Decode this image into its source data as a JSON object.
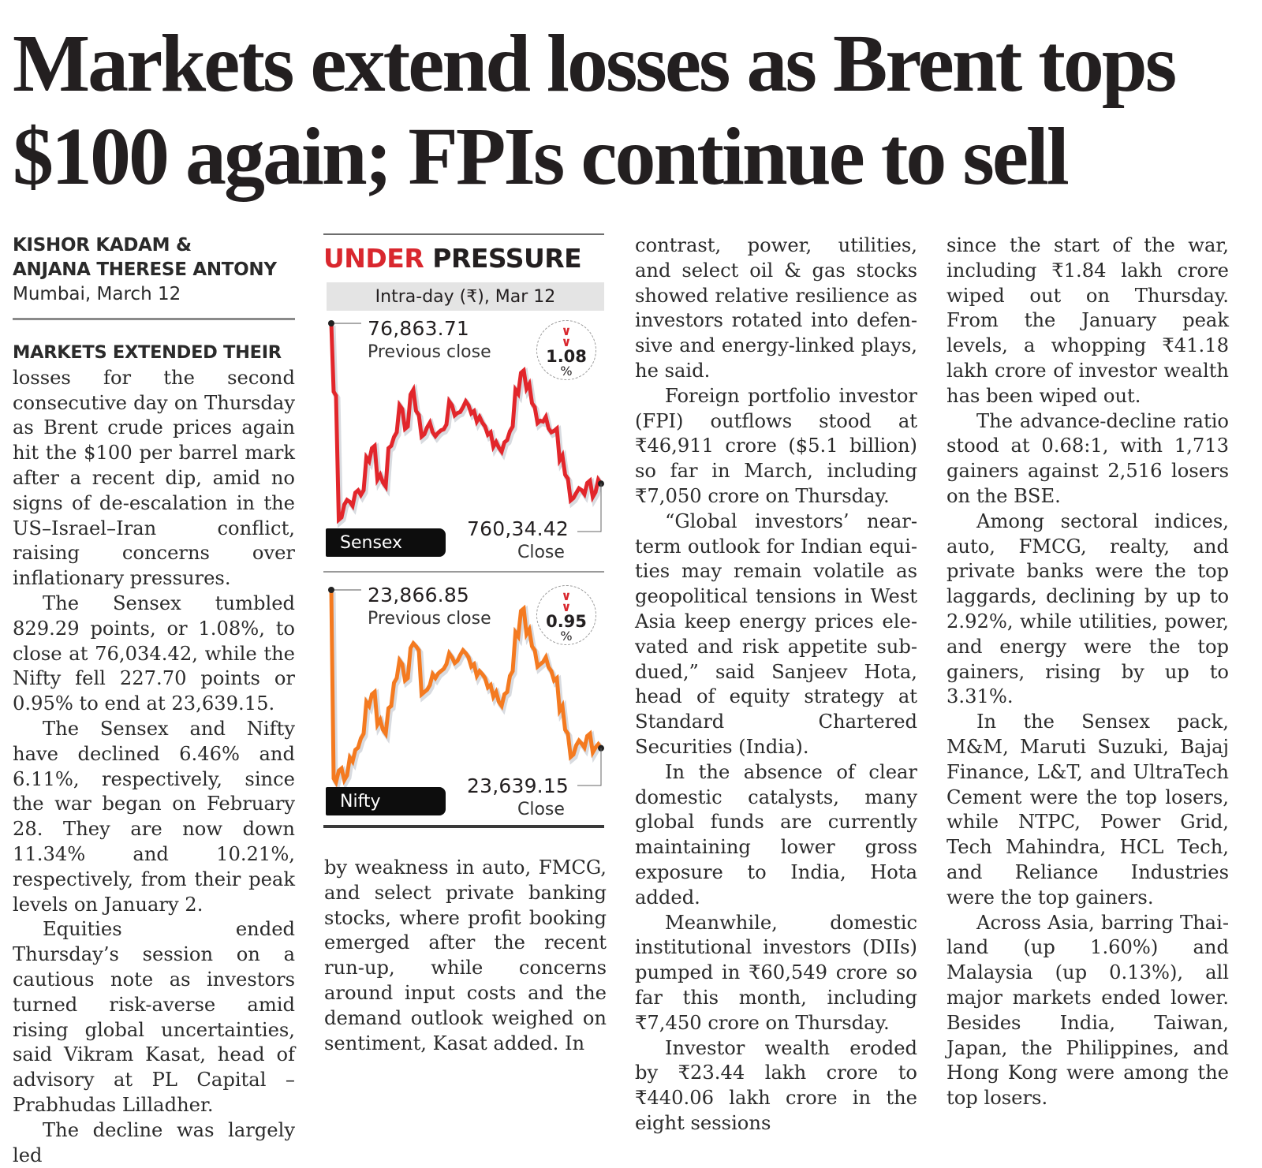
{
  "headline": {
    "line1": "Markets extend losses as Brent tops",
    "line2": "$100 again; FPIs continue to sell"
  },
  "byline": {
    "authors_line1": "KISHOR KADAM &",
    "authors_line2": "ANJANA THERESE ANTONY",
    "dateline": "Mumbai, March 12"
  },
  "graphic": {
    "title_red": "UNDER",
    "title_dark": "PRESSURE",
    "subtitle": "Intra-day (₹), Mar 12",
    "colors": {
      "red": "#d9272e",
      "sensex_line": "#e2262b",
      "nifty_line": "#f47a20",
      "dark": "#231f20"
    },
    "sensex": {
      "name": "Sensex",
      "previous_close_value": "76,863.71",
      "previous_close_label": "Previous close",
      "close_value": "760,34.42",
      "close_label": "Close",
      "change_pct": "1.08",
      "pct_symbol": "%",
      "arrow_icon": "double-chevron-down"
    },
    "nifty": {
      "name": "Nifty",
      "previous_close_value": "23,866.85",
      "previous_close_label": "Previous close",
      "close_value": "23,639.15",
      "close_label": "Close",
      "change_pct": "0.95",
      "pct_symbol": "%",
      "arrow_icon": "double-chevron-down"
    }
  },
  "chart_data": [
    {
      "type": "line",
      "title": "Sensex",
      "ylabel": "Intra-day (₹)",
      "annotations": [
        "76,863.71 Previous close",
        "760,34.42 Close",
        "1.08 %"
      ],
      "y_start": 76863.71,
      "y_end": 76034.42,
      "series": [
        {
          "name": "Sensex",
          "values": [
            76863.71,
            76490,
            75860,
            75950,
            75920,
            76000,
            76000,
            76150,
            76230,
            76080,
            76020,
            76230,
            76300,
            76420,
            76330,
            76520,
            76390,
            76290,
            76350,
            76280,
            76310,
            76340,
            76440,
            76400,
            76430,
            76440,
            76410,
            76380,
            76330,
            76300,
            76250,
            76200,
            76260,
            76330,
            76500,
            76620,
            76550,
            76430,
            76360,
            76380,
            76300,
            76320,
            76180,
            76060,
            75960,
            76010,
            75980,
            76050,
            75990,
            76034.42
          ]
        }
      ]
    },
    {
      "type": "line",
      "title": "Nifty",
      "ylabel": "Intra-day (₹)",
      "annotations": [
        "23,866.85 Previous close",
        "23,639.15 Close",
        "0.95 %"
      ],
      "y_start": 23866.85,
      "y_end": 23639.15,
      "series": [
        {
          "name": "Nifty",
          "values": [
            23866.85,
            23590,
            23610,
            23600,
            23620,
            23640,
            23660,
            23700,
            23720,
            23680,
            23660,
            23700,
            23740,
            23760,
            23740,
            23790,
            23780,
            23720,
            23730,
            23740,
            23750,
            23760,
            23770,
            23765,
            23780,
            23770,
            23760,
            23750,
            23740,
            23730,
            23720,
            23700,
            23720,
            23750,
            23800,
            23840,
            23810,
            23780,
            23760,
            23770,
            23750,
            23740,
            23700,
            23660,
            23630,
            23650,
            23640,
            23660,
            23640,
            23639.15
          ]
        }
      ]
    }
  ],
  "columns": {
    "col1": {
      "lede_caps": "MARKETS EXTENDED THEIR",
      "p1": "losses for the second consecu­tive day on Thursday as Brent crude prices again hit the $100 per barrel mark after a recent dip, amid no signs of de-esca­lation in the US–Israel–Iran conflict, raising concerns over inflationary pressures.",
      "p2": "The Sensex tumbled 829.29 points, or 1.08%, to close at 76,034.42, while the Nifty fell 227.70 points or 0.95% to end at 23,639.15.",
      "p3": "The Sensex and Nifty have declined 6.46% and 6.11%, respectively, since the war began on February 28. They are now down 11.34% and 10.21%, respectively, from their peak levels on January 2.",
      "p4": "Equities ended Thursday’s session on a cautious note as investors turned risk-averse amid rising global uncertain­ties, said Vikram Kasat, head of advisory at PL Capital – Prab­hudas Lilladher.",
      "p5": "The decline was largely led"
    },
    "col2": {
      "p1": "by weakness in auto, FMCG, and select private banking stocks, where profit booking emerged after the recent run-up, while concerns around input costs and the demand outlook weighed on sentiment, Kasat added. In"
    },
    "col3": {
      "p1": "contrast, power, utilities, and select oil & gas stocks showed relative resilience as investors rotated into defen­sive and energy-linked plays, he said.",
      "p2": "Foreign portfolio investor (FPI) outflows stood at ₹46,911 crore ($5.1 billion) so far in March, including ₹7,050 crore on Thursday.",
      "p3": "“Global investors’ near-term outlook for Indian equi­ties may remain volatile as geopolitical tensions in West Asia keep energy prices ele­vated and risk appetite sub­dued,” said Sanjeev Hota, head of equity strategy at Standard Chartered Securities (India).",
      "p4": "In the absence of clear domestic catalysts, many global funds are currently maintaining lower gross expo­sure to India, Hota added.",
      "p5": "Meanwhile, domestic insti­tutional investors (DIIs) pumped in ₹60,549 crore so far this month, including ₹7,450 crore on Thursday.",
      "p6": "Investor wealth eroded by ₹23.44 lakh crore to ₹440.06 lakh crore in the eight sessions"
    },
    "col4": {
      "p1": "since the start of the war, including ₹1.84 lakh crore wiped out on Thursday. From the January peak levels, a whopping ₹41.18 lakh crore of investor wealth has been wiped out.",
      "p2": "The advance-decline ratio stood at 0.68:1, with 1,713 gainers against 2,516 losers on the BSE.",
      "p3": "Among sectoral indices, auto, FMCG, realty, and private banks were the top laggards, declining by up to 2.92%, while utilities, power, and energy were the top gainers, rising by up to 3.31%.",
      "p4": "In the Sensex pack, M&M, Maruti Suzuki, Bajaj Finance, L&T, and UltraTech Cement were the top losers, while NTPC, Power Grid, Tech Mahindra, HCL Tech, and Reliance Industries were the top gainers.",
      "p5": "Across Asia, barring Thai­land (up 1.60%) and Malaysia (up 0.13%), all major markets ended lower. Besides India, Tai­wan, Japan, the Philippines, and Hong Kong were among the top losers."
    }
  }
}
